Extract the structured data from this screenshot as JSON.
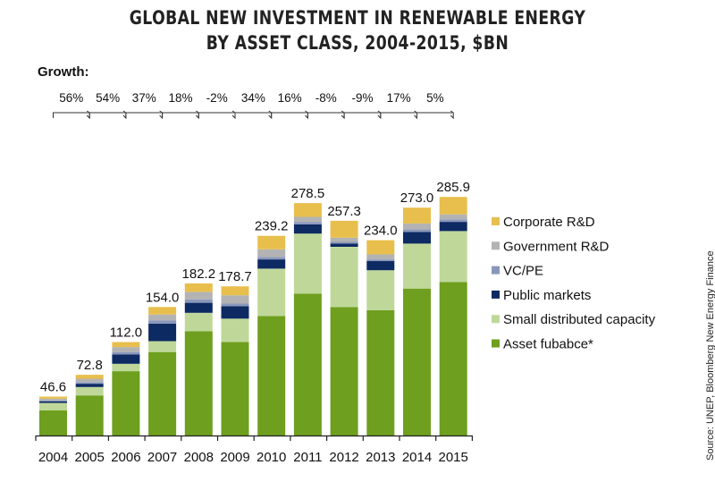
{
  "title_line1": "GLOBAL NEW INVESTMENT IN RENEWABLE ENERGY",
  "title_line2": "BY ASSET CLASS, 2004-2015, $BN",
  "growth_label": "Growth:",
  "source": "Source: UNEP, Bloomberg New Energy Finance",
  "chart_data": {
    "type": "bar",
    "stacked": true,
    "title": "GLOBAL NEW INVESTMENT IN RENEWABLE ENERGY BY ASSET CLASS, 2004-2015, $BN",
    "xlabel": "",
    "ylabel": "",
    "ylim": [
      0,
      300
    ],
    "grid": false,
    "categories": [
      "2004",
      "2005",
      "2006",
      "2007",
      "2008",
      "2009",
      "2010",
      "2011",
      "2012",
      "2013",
      "2014",
      "2015"
    ],
    "totals": [
      "46.6",
      "72.8",
      "112.0",
      "154.0",
      "182.2",
      "178.7",
      "239.2",
      "278.5",
      "257.3",
      "234.0",
      "273.0",
      "285.9"
    ],
    "growth": [
      "56%",
      "54%",
      "37%",
      "18%",
      "-2%",
      "34%",
      "16%",
      "-8%",
      "-9%",
      "17%",
      "5%"
    ],
    "series": [
      {
        "name": "Asset fubabce*",
        "color": "#6e9f1e",
        "values": [
          30,
          48,
          77,
          100,
          125,
          112,
          143,
          170,
          154,
          150,
          176,
          184
        ]
      },
      {
        "name": "Small distributed capacity",
        "color": "#bfd89a",
        "values": [
          9,
          10,
          9,
          13,
          22,
          28,
          57,
          72,
          72,
          48,
          54,
          61
        ]
      },
      {
        "name": "Public markets",
        "color": "#0d2a63",
        "values": [
          2,
          4,
          11,
          21,
          12,
          15,
          11,
          11,
          4,
          11,
          14,
          11
        ]
      },
      {
        "name": "VC/PE",
        "color": "#8a97bb",
        "values": [
          1,
          2,
          3,
          4,
          4,
          3,
          3,
          3,
          2,
          2,
          3,
          3
        ]
      },
      {
        "name": "Government R&D",
        "color": "#b3b3b3",
        "values": [
          2,
          4,
          6,
          7,
          9,
          10,
          9,
          6,
          5,
          6,
          7,
          6
        ]
      },
      {
        "name": "Corporate R&D",
        "color": "#e8bf4d",
        "values": [
          2.6,
          4.8,
          6.0,
          9.0,
          10.2,
          10.7,
          16.2,
          16.5,
          20.3,
          17.0,
          19.0,
          20.9
        ]
      }
    ],
    "legend_order": [
      "Corporate R&D",
      "Government R&D",
      "VC/PE",
      "Public markets",
      "Small distributed capacity",
      "Asset fubabce*"
    ]
  }
}
